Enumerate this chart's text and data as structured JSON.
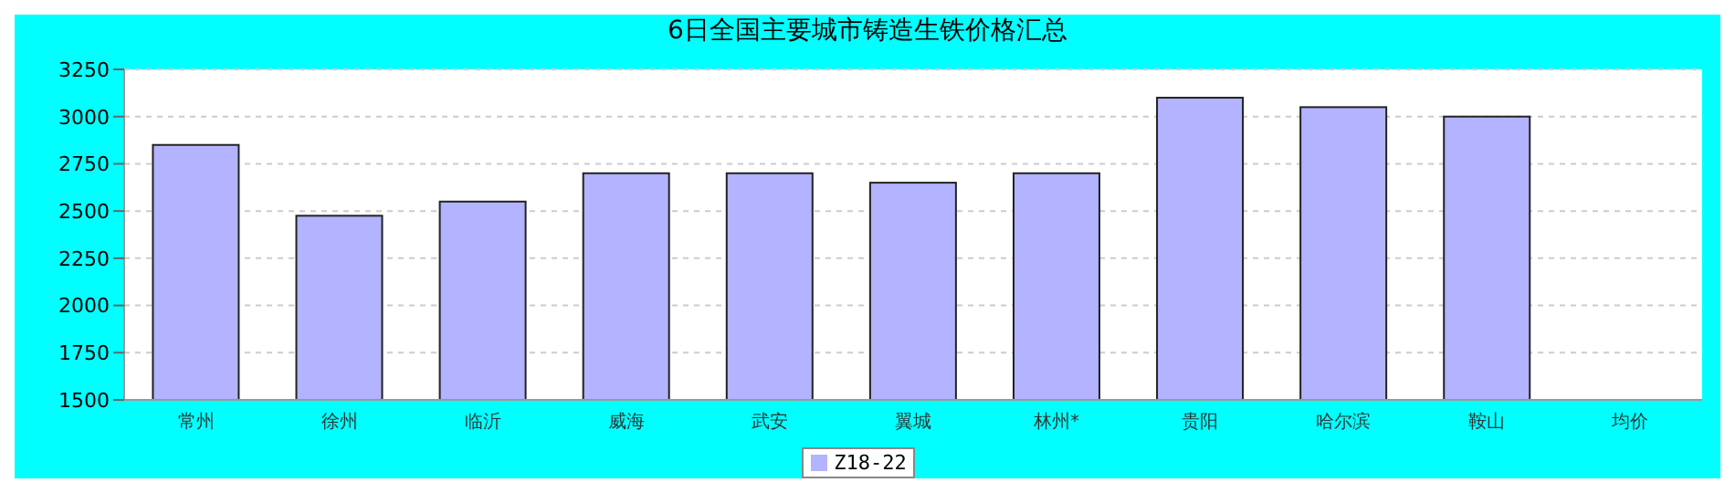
{
  "chart_data": {
    "type": "bar",
    "title": "6日全国主要城市铸造生铁价格汇总",
    "categories": [
      "常州",
      "徐州",
      "临沂",
      "威海",
      "武安",
      "翼城",
      "林州*",
      "贵阳",
      "哈尔滨",
      "鞍山",
      "均价"
    ],
    "series": [
      {
        "name": "Z18-22",
        "color": "#b3b3ff",
        "values": [
          2850,
          2475,
          2550,
          2700,
          2700,
          2650,
          2700,
          3100,
          3050,
          3000,
          null
        ]
      }
    ],
    "ylim": [
      1500,
      3250
    ],
    "yticks": [
      1500,
      1750,
      2000,
      2250,
      2500,
      2750,
      3000,
      3250
    ],
    "grid": "y",
    "legend": "bottom"
  }
}
